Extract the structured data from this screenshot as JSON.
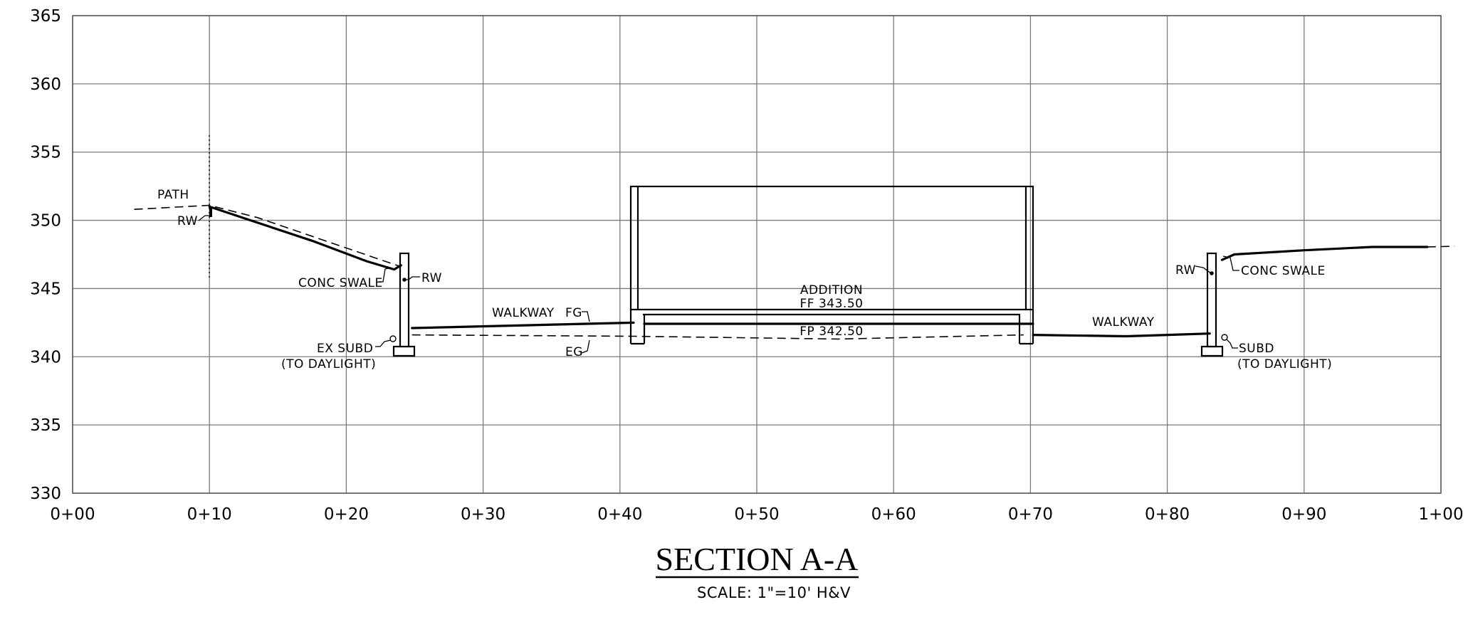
{
  "drawing": {
    "title": "SECTION A-A",
    "scale_note": "SCALE: 1\"=10' H&V"
  },
  "axes": {
    "y_ticks": [
      "330",
      "335",
      "340",
      "345",
      "350",
      "355",
      "360",
      "365"
    ],
    "y_range": [
      330,
      365
    ],
    "x_ticks": [
      "0+00",
      "0+10",
      "0+20",
      "0+30",
      "0+40",
      "0+50",
      "0+60",
      "0+70",
      "0+80",
      "0+90",
      "1+00"
    ],
    "x_range": [
      0,
      100
    ],
    "grid": true
  },
  "annotations": {
    "path": "PATH",
    "rw_left_top": "RW",
    "conc_swale_left": "CONC SWALE",
    "rw_left_wall": "RW",
    "ex_subd": "EX SUBD",
    "to_daylight_left": "(TO DAYLIGHT)",
    "walkway_left": "WALKWAY",
    "fg": "FG",
    "eg": "EG",
    "addition": "ADDITION",
    "ff": "FF 343.50",
    "fp": "FP 342.50",
    "walkway_right": "WALKWAY",
    "rw_right_wall": "RW",
    "conc_swale_right": "CONC SWALE",
    "subd": "SUBD",
    "to_daylight_right": "(TO DAYLIGHT)"
  },
  "profiles": {
    "finished_grade_left": [
      [
        10,
        351
      ],
      [
        13,
        350
      ],
      [
        17.5,
        348.5
      ],
      [
        21.5,
        347
      ],
      [
        23.5,
        346.4
      ],
      [
        24,
        346.7
      ]
    ],
    "existing_grade_left": [
      [
        4.5,
        350.8
      ],
      [
        10,
        351.1
      ],
      [
        13.5,
        350.2
      ],
      [
        24,
        346.6
      ]
    ],
    "walkway_left": [
      [
        24.8,
        342.1
      ],
      [
        41,
        342.5
      ]
    ],
    "existing_grade_mid": [
      [
        24.8,
        341.6
      ],
      [
        41,
        341.5
      ],
      [
        56,
        341.3
      ],
      [
        69.5,
        341.6
      ]
    ],
    "walkway_right": [
      [
        70.2,
        341.6
      ],
      [
        77,
        341.5
      ],
      [
        83.1,
        341.7
      ]
    ],
    "finished_grade_right": [
      [
        84,
        347.1
      ],
      [
        84.9,
        347.5
      ],
      [
        90,
        347.8
      ],
      [
        95,
        348.05
      ],
      [
        99,
        348.05
      ]
    ],
    "existing_grade_right": [
      [
        99,
        348.05
      ],
      [
        101,
        348.1
      ]
    ]
  }
}
